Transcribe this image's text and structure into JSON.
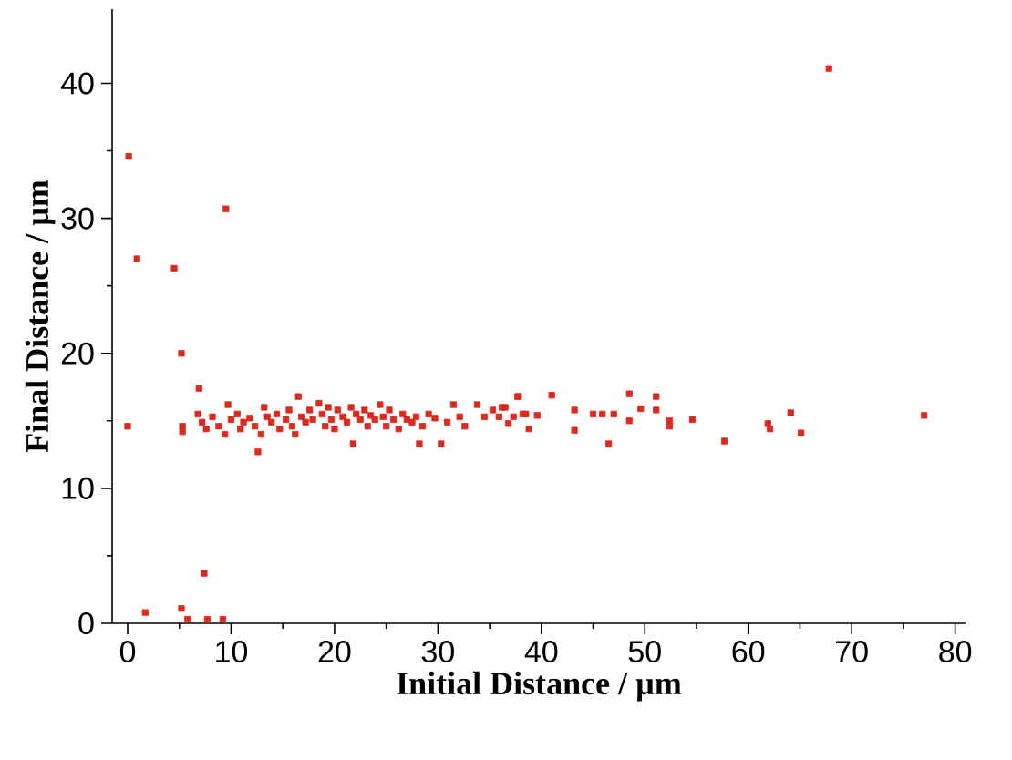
{
  "chart_data": {
    "type": "scatter",
    "xlabel": "Initial Distance / µm",
    "ylabel": "Final Distance / µm",
    "xlim": [
      -1.5,
      81
    ],
    "ylim": [
      0,
      45.5
    ],
    "xticks": [
      0,
      10,
      20,
      30,
      40,
      50,
      60,
      70,
      80
    ],
    "yticks": [
      0,
      10,
      20,
      30,
      40
    ],
    "marker": "square",
    "grid": false,
    "series": [
      {
        "color": "#dc2a1e",
        "x": [
          0.1,
          0.9,
          9.5,
          4.5,
          5.2,
          6.9,
          0,
          7.4,
          1.7,
          5.2,
          5.8,
          7.7,
          9.2,
          67.8,
          77.0,
          5.3,
          5.3,
          37.7,
          41.0,
          36.2,
          38.5,
          38.8,
          36.8,
          39.6,
          43.2,
          43.2,
          45.0,
          45.9,
          47.0,
          46.5,
          48.5,
          48.5,
          49.6,
          51.1,
          51.1,
          52.4,
          52.4,
          54.6,
          57.7,
          61.9,
          62.1,
          64.1,
          65.1,
          6.8,
          7.2,
          7.6,
          8.2,
          8.8,
          9.4,
          9.7,
          10.0,
          10.6,
          10.9,
          11.2,
          11.8,
          12.3,
          12.6,
          12.9,
          13.2,
          13.5,
          13.9,
          14.4,
          14.7,
          15.3,
          15.6,
          15.9,
          16.2,
          16.5,
          16.8,
          17.2,
          17.6,
          17.9,
          18.5,
          18.8,
          19.1,
          19.4,
          19.7,
          20.0,
          20.3,
          20.8,
          21.2,
          21.6,
          21.8,
          22.1,
          22.5,
          22.9,
          23.2,
          23.5,
          23.9,
          24.4,
          24.7,
          25.0,
          25.3,
          25.7,
          26.2,
          26.6,
          27.0,
          27.5,
          27.9,
          28.2,
          28.5,
          29.1,
          29.7,
          30.3,
          30.9,
          31.5,
          32.1,
          32.6,
          33.8,
          34.5,
          35.3,
          35.9,
          36.5,
          37.3,
          37.8,
          38.2
        ],
        "values": [
          34.6,
          27.0,
          30.7,
          26.3,
          20.0,
          17.4,
          14.6,
          3.7,
          0.8,
          1.1,
          0.3,
          0.3,
          0.3,
          41.1,
          15.4,
          14.6,
          14.2,
          16.8,
          16.9,
          16.0,
          15.5,
          14.4,
          14.8,
          15.4,
          15.8,
          14.3,
          15.5,
          15.5,
          15.5,
          13.3,
          17.0,
          15.0,
          15.9,
          16.8,
          15.8,
          15.0,
          14.6,
          15.1,
          13.5,
          14.8,
          14.4,
          15.6,
          14.1,
          15.5,
          14.9,
          14.4,
          15.3,
          14.6,
          14.0,
          16.2,
          15.1,
          15.5,
          14.4,
          14.9,
          15.2,
          14.6,
          12.7,
          14.0,
          16.0,
          15.3,
          14.9,
          15.5,
          14.4,
          15.1,
          15.8,
          14.6,
          14.0,
          16.8,
          15.3,
          14.9,
          15.8,
          15.1,
          16.3,
          15.5,
          14.6,
          16.0,
          15.1,
          14.4,
          15.8,
          15.3,
          14.9,
          16.0,
          13.3,
          15.5,
          15.1,
          15.8,
          14.6,
          15.4,
          15.1,
          16.2,
          15.3,
          14.6,
          15.8,
          15.1,
          14.4,
          15.5,
          15.1,
          14.9,
          15.3,
          13.3,
          14.6,
          15.5,
          15.2,
          13.3,
          14.9,
          16.2,
          15.3,
          14.6,
          16.2,
          15.3,
          15.8,
          15.3,
          16.0,
          15.3,
          16.8,
          15.5
        ]
      }
    ]
  }
}
